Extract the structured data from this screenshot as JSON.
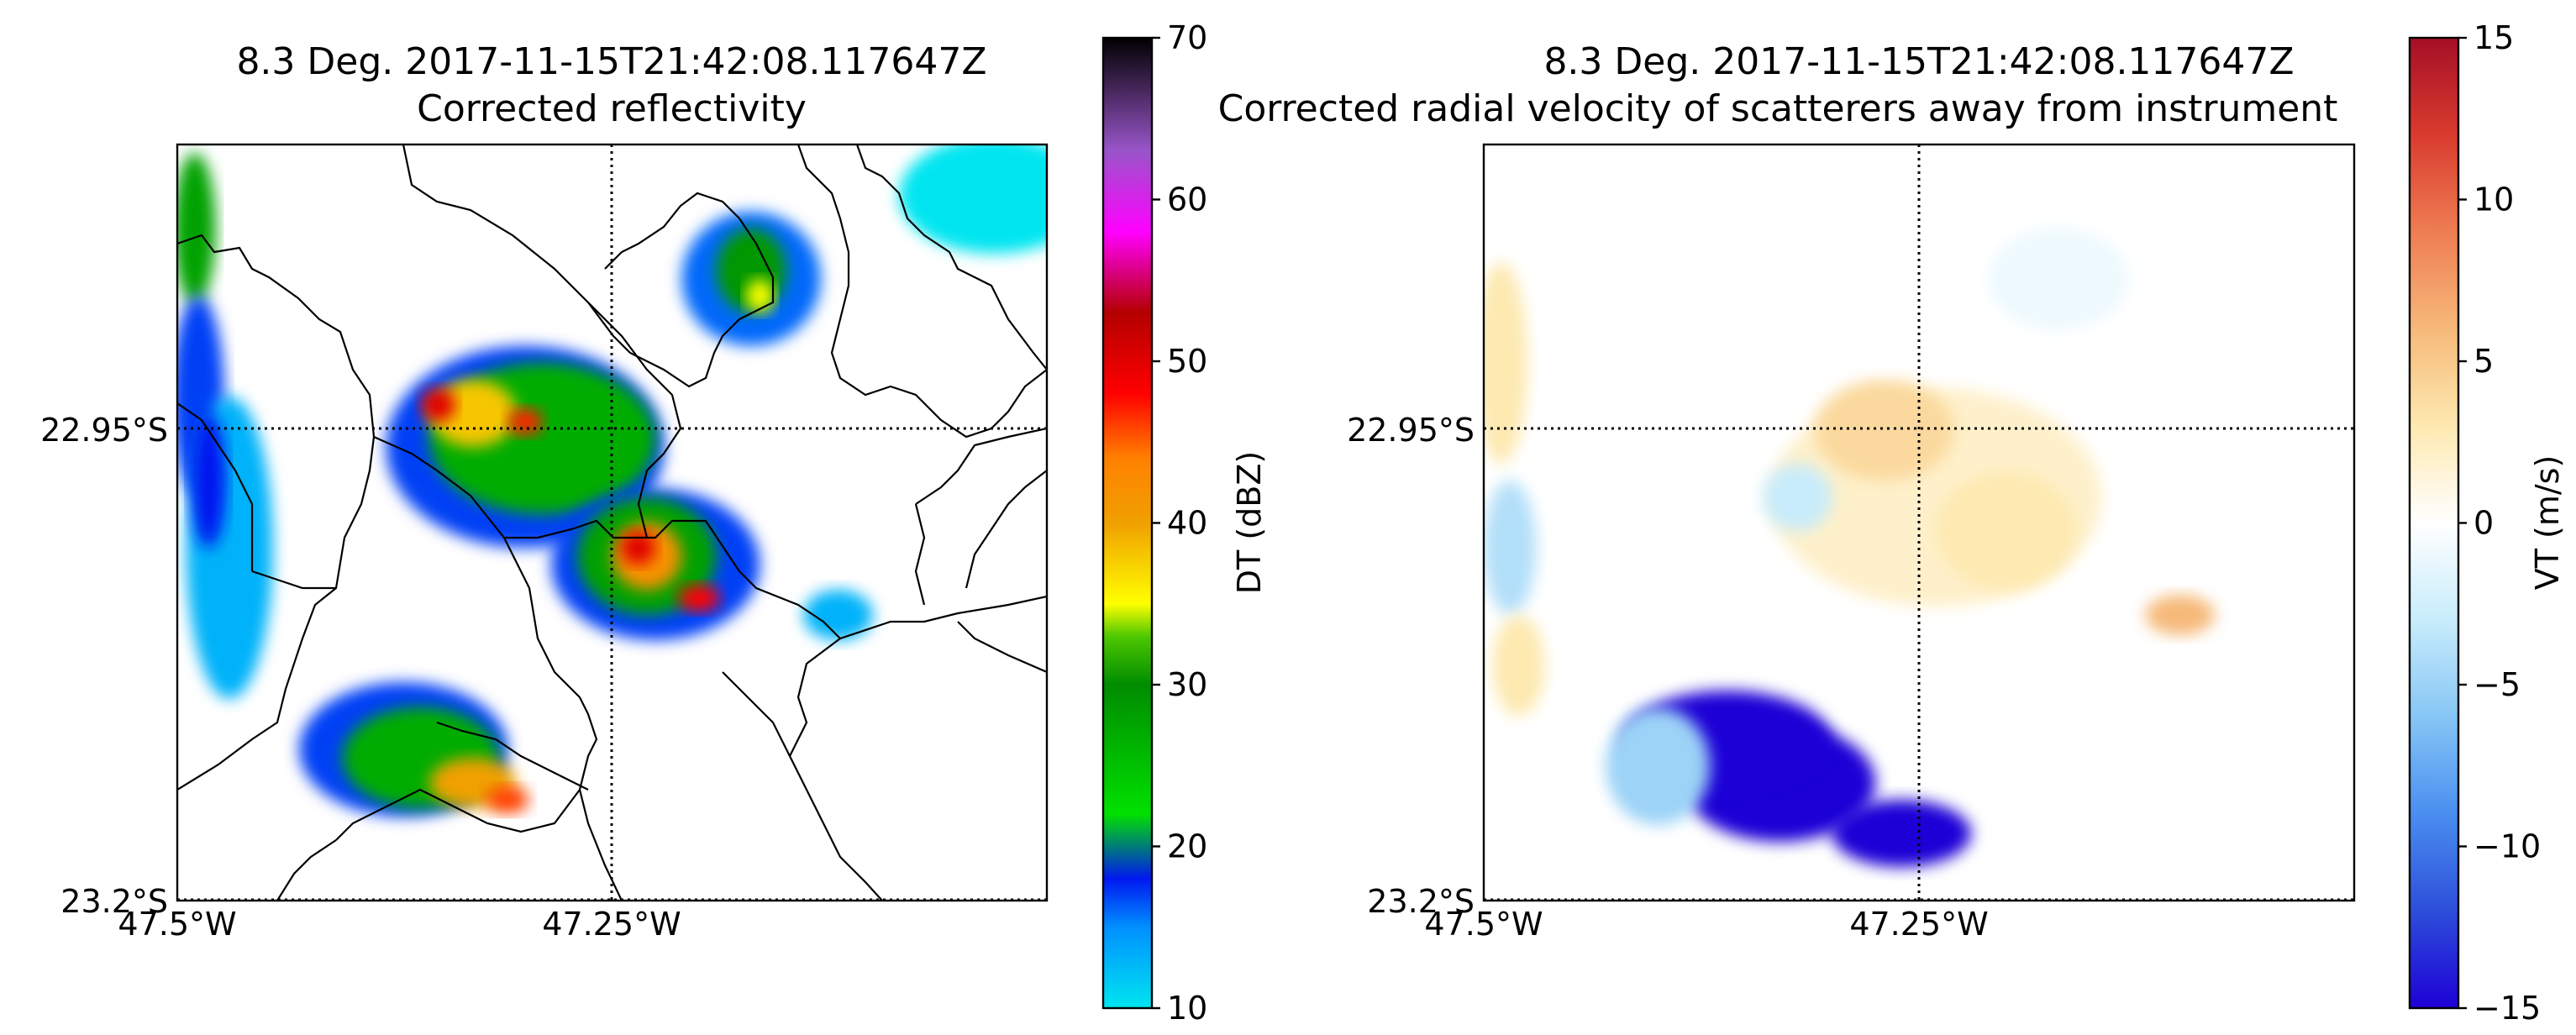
{
  "chart_data": [
    {
      "type": "heatmap",
      "title": "8.3 Deg. 2017-11-15T21:42:08.117647Z",
      "subtitle": "Corrected reflectivity",
      "x_ticks": [
        "47.5°W",
        "47.25°W"
      ],
      "y_ticks": [
        "22.95°S",
        "23.2°S"
      ],
      "xlim": [
        -47.5,
        -47.0
      ],
      "ylim": [
        -23.2,
        -22.75
      ],
      "grid_lines": {
        "lon": -47.25,
        "lat": -22.95
      },
      "colorbar": {
        "label": "DT (dBZ)",
        "range": [
          10,
          70
        ],
        "ticks": [
          "10",
          "20",
          "30",
          "40",
          "50",
          "60",
          "70"
        ],
        "colormap": "pyart_NWSRef",
        "stops": [
          {
            "v": 10,
            "c": "#00e5f0"
          },
          {
            "v": 15,
            "c": "#0090ff"
          },
          {
            "v": 18,
            "c": "#0018f0"
          },
          {
            "v": 22,
            "c": "#00e000"
          },
          {
            "v": 30,
            "c": "#008c00"
          },
          {
            "v": 33,
            "c": "#4ec800"
          },
          {
            "v": 35,
            "c": "#ffff00"
          },
          {
            "v": 40,
            "c": "#f0a000"
          },
          {
            "v": 44,
            "c": "#ff8000"
          },
          {
            "v": 48,
            "c": "#ff0000"
          },
          {
            "v": 53,
            "c": "#b40000"
          },
          {
            "v": 58,
            "c": "#ff00ff"
          },
          {
            "v": 63,
            "c": "#9955c9"
          },
          {
            "v": 70,
            "c": "#000000"
          }
        ]
      },
      "cells": [
        {
          "lon": -47.49,
          "lat": -22.8,
          "rx": 0.012,
          "ry": 0.045,
          "value": 28
        },
        {
          "lon": -47.488,
          "lat": -22.9,
          "rx": 0.015,
          "ry": 0.06,
          "value": 17
        },
        {
          "lon": -47.47,
          "lat": -22.99,
          "rx": 0.025,
          "ry": 0.09,
          "value": 13
        },
        {
          "lon": -47.482,
          "lat": -22.95,
          "rx": 0.01,
          "ry": 0.04,
          "value": 18
        },
        {
          "lon": -47.03,
          "lat": -22.78,
          "rx": 0.055,
          "ry": 0.035,
          "value": 10
        },
        {
          "lon": -47.17,
          "lat": -22.83,
          "rx": 0.04,
          "ry": 0.04,
          "value": 16
        },
        {
          "lon": -47.17,
          "lat": -22.825,
          "rx": 0.02,
          "ry": 0.025,
          "value": 29
        },
        {
          "lon": -47.165,
          "lat": -22.84,
          "rx": 0.008,
          "ry": 0.01,
          "value": 35
        },
        {
          "lon": -47.3,
          "lat": -22.93,
          "rx": 0.08,
          "ry": 0.06,
          "value": 17
        },
        {
          "lon": -47.29,
          "lat": -22.925,
          "rx": 0.065,
          "ry": 0.045,
          "value": 27
        },
        {
          "lon": -47.33,
          "lat": -22.91,
          "rx": 0.025,
          "ry": 0.02,
          "value": 38
        },
        {
          "lon": -47.35,
          "lat": -22.905,
          "rx": 0.01,
          "ry": 0.01,
          "value": 50
        },
        {
          "lon": -47.3,
          "lat": -22.915,
          "rx": 0.01,
          "ry": 0.008,
          "value": 47
        },
        {
          "lon": -47.225,
          "lat": -23.0,
          "rx": 0.06,
          "ry": 0.045,
          "value": 17
        },
        {
          "lon": -47.23,
          "lat": -22.995,
          "rx": 0.04,
          "ry": 0.035,
          "value": 28
        },
        {
          "lon": -47.23,
          "lat": -22.995,
          "rx": 0.02,
          "ry": 0.02,
          "value": 42
        },
        {
          "lon": -47.235,
          "lat": -22.99,
          "rx": 0.01,
          "ry": 0.01,
          "value": 50
        },
        {
          "lon": -47.2,
          "lat": -23.02,
          "rx": 0.012,
          "ry": 0.008,
          "value": 48
        },
        {
          "lon": -47.12,
          "lat": -23.03,
          "rx": 0.02,
          "ry": 0.015,
          "value": 13
        },
        {
          "lon": -47.37,
          "lat": -23.11,
          "rx": 0.06,
          "ry": 0.04,
          "value": 17
        },
        {
          "lon": -47.36,
          "lat": -23.115,
          "rx": 0.045,
          "ry": 0.03,
          "value": 27
        },
        {
          "lon": -47.33,
          "lat": -23.13,
          "rx": 0.025,
          "ry": 0.015,
          "value": 40
        },
        {
          "lon": -47.31,
          "lat": -23.14,
          "rx": 0.012,
          "ry": 0.008,
          "value": 46
        }
      ]
    },
    {
      "type": "heatmap",
      "title": "8.3 Deg. 2017-11-15T21:42:08.117647Z",
      "subtitle": "Corrected radial velocity of scatterers away from instrument",
      "x_ticks": [
        "47.5°W",
        "47.25°W"
      ],
      "y_ticks": [
        "22.95°S",
        "23.2°S"
      ],
      "xlim": [
        -47.5,
        -47.0
      ],
      "ylim": [
        -23.2,
        -22.75
      ],
      "grid_lines": {
        "lon": -47.25,
        "lat": -22.95
      },
      "colorbar": {
        "label": "VT (m/s)",
        "range": [
          -15,
          15
        ],
        "ticks": [
          "−15",
          "−10",
          "−5",
          "0",
          "5",
          "10",
          "15"
        ],
        "colormap": "pyart_BuDRd18",
        "stops": [
          {
            "v": -15,
            "c": "#1d00d6"
          },
          {
            "v": -12,
            "c": "#2d4ed9"
          },
          {
            "v": -9,
            "c": "#4a8ef0"
          },
          {
            "v": -6,
            "c": "#86c6f5"
          },
          {
            "v": -3,
            "c": "#c8ecfb"
          },
          {
            "v": 0,
            "c": "#ffffff"
          },
          {
            "v": 3,
            "c": "#fde9b0"
          },
          {
            "v": 6,
            "c": "#f6b979"
          },
          {
            "v": 9,
            "c": "#ee7d53"
          },
          {
            "v": 12,
            "c": "#d93b2e"
          },
          {
            "v": 15,
            "c": "#a50f26"
          }
        ]
      },
      "cells": [
        {
          "lon": -47.49,
          "lat": -22.88,
          "rx": 0.015,
          "ry": 0.06,
          "value": 3
        },
        {
          "lon": -47.485,
          "lat": -22.99,
          "rx": 0.015,
          "ry": 0.04,
          "value": -4
        },
        {
          "lon": -47.48,
          "lat": -23.06,
          "rx": 0.015,
          "ry": 0.03,
          "value": 3
        },
        {
          "lon": -47.24,
          "lat": -22.96,
          "rx": 0.095,
          "ry": 0.065,
          "value": 2
        },
        {
          "lon": -47.27,
          "lat": -22.92,
          "rx": 0.04,
          "ry": 0.03,
          "value": 4
        },
        {
          "lon": -47.2,
          "lat": -22.98,
          "rx": 0.04,
          "ry": 0.035,
          "value": 3
        },
        {
          "lon": -47.17,
          "lat": -22.83,
          "rx": 0.04,
          "ry": 0.03,
          "value": -1
        },
        {
          "lon": -47.1,
          "lat": -23.03,
          "rx": 0.02,
          "ry": 0.012,
          "value": 6
        },
        {
          "lon": -47.32,
          "lat": -22.96,
          "rx": 0.02,
          "ry": 0.02,
          "value": -3
        },
        {
          "lon": -47.33,
          "lat": -23.13,
          "rx": 0.055,
          "ry": 0.035,
          "value": -15
        },
        {
          "lon": -47.36,
          "lat": -23.105,
          "rx": 0.06,
          "ry": 0.03,
          "value": -15
        },
        {
          "lon": -47.26,
          "lat": -23.16,
          "rx": 0.04,
          "ry": 0.02,
          "value": -15
        },
        {
          "lon": -47.4,
          "lat": -23.12,
          "rx": 0.03,
          "ry": 0.035,
          "value": -5
        }
      ]
    }
  ]
}
